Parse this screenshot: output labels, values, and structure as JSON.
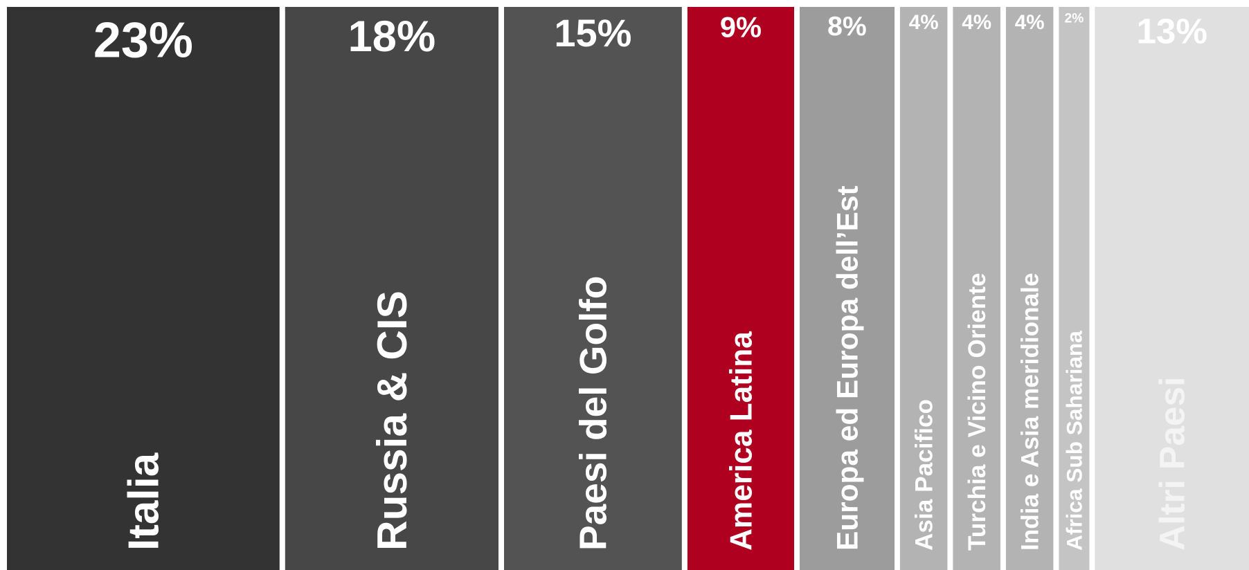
{
  "chart_data": {
    "type": "bar",
    "title": "",
    "categories": [
      "Italia",
      "Russia & CIS",
      "Paesi del Golfo",
      "America Latina",
      "Europa ed Europa dell’Est",
      "Asia Pacifico",
      "Turchia e Vicino Oriente",
      "India e Asia meridionale",
      "Africa Sub Sahariana",
      "Altri Paesi"
    ],
    "values": [
      23,
      18,
      15,
      9,
      8,
      4,
      4,
      4,
      2,
      13
    ],
    "value_labels": [
      "23%",
      "18%",
      "15%",
      "9%",
      "8%",
      "4%",
      "4%",
      "4%",
      "2%",
      "13%"
    ],
    "unit": "%",
    "colors": [
      "#333333",
      "#474747",
      "#535353",
      "#b00020",
      "#9c9c9c",
      "#b3b3b3",
      "#b3b3b3",
      "#b3b3b3",
      "#c4c4c4",
      "#e0e0e0"
    ],
    "highlight": "America Latina",
    "legend": "none",
    "grid": false
  }
}
